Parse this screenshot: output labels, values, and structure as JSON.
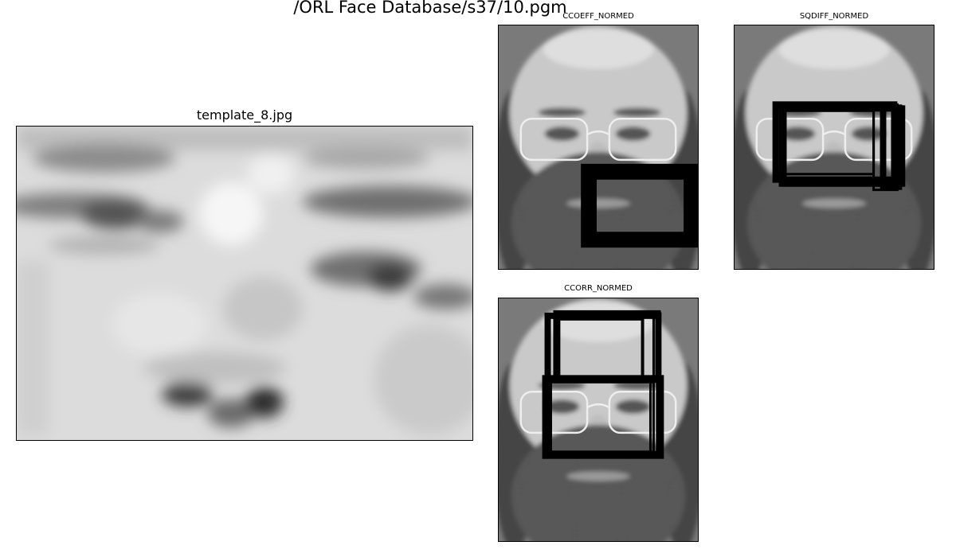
{
  "figure": {
    "suptitle": "/ORL Face Database/s37/10.pgm"
  },
  "panels": {
    "template": {
      "title": "template_8.jpg"
    },
    "ccoeff": {
      "title": "CCOEFF_NORMED"
    },
    "sqdiff": {
      "title": "SQDIFF_NORMED"
    },
    "ccorr": {
      "title": "CCORR_NORMED"
    }
  },
  "colors": {
    "background": "#ffffff",
    "match_box": "#000000",
    "photo_bg": "#7a7a7a",
    "template_light": "#d8d8d8"
  }
}
